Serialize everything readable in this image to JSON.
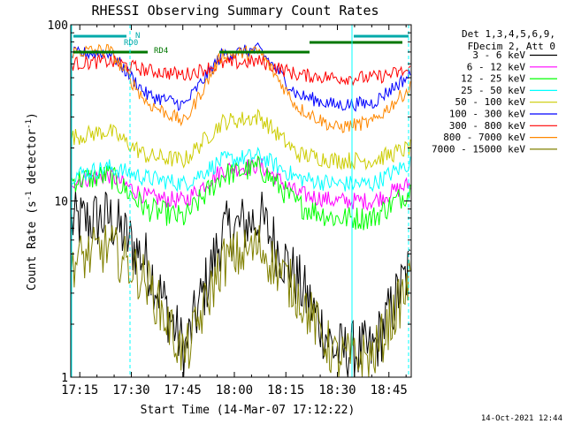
{
  "chart_data": {
    "type": "line",
    "title": "RHESSI Observing Summary Count Rates",
    "xlabel": "Start Time (14-Mar-07 17:12:22)",
    "ylabel": "Count Rate (s⁻¹ detector⁻¹)",
    "ylabel_main": "Count Rate (s",
    "ylabel_mid": " detector",
    "ylabel_end": ")",
    "ylabel_sup": "-1",
    "y_scale": "log",
    "xlim": [
      "17:12:22",
      "18:51:30"
    ],
    "ylim": [
      1,
      100
    ],
    "x_ticks": [
      "17:15",
      "17:30",
      "17:45",
      "18:00",
      "18:15",
      "18:30",
      "18:45"
    ],
    "y_ticks": [
      "1",
      "10",
      "100"
    ],
    "legend_header": [
      "Det 1,3,4,5,6,9,",
      "FDecim 2, Att 0"
    ],
    "legend_position": "right",
    "timestamp": "14-Oct-2021 12:44",
    "annotations": [
      {
        "label": "N",
        "color": "#00aaaa"
      },
      {
        "label": "RD0",
        "color": "#00aaaa"
      },
      {
        "label": "RD4",
        "color": "#007700"
      }
    ],
    "series": [
      {
        "name": "3 - 6 keV",
        "color": "#000000",
        "values": [
          7.5,
          8.0,
          4.5,
          1.4,
          6.5,
          8.0,
          3.5,
          1.4,
          1.4,
          4.2
        ],
        "noise": 0.18
      },
      {
        "name": "6 - 12 keV",
        "color": "#ff00ff",
        "values": [
          13.0,
          14.0,
          10.5,
          10.0,
          15.0,
          16.0,
          11.0,
          10.0,
          10.0,
          12.5
        ],
        "noise": 0.05
      },
      {
        "name": "12 - 25 keV",
        "color": "#00ff00",
        "values": [
          13.0,
          14.0,
          9.0,
          8.0,
          14.0,
          15.5,
          9.5,
          8.0,
          8.0,
          11.5
        ],
        "noise": 0.07
      },
      {
        "name": "25 - 50 keV",
        "color": "#00ffff",
        "values": [
          14.0,
          15.5,
          13.5,
          12.5,
          17.0,
          18.0,
          13.5,
          12.5,
          12.5,
          16.5
        ],
        "noise": 0.05
      },
      {
        "name": "50 - 100 keV",
        "color": "#cccc00",
        "values": [
          23.0,
          25.0,
          18.0,
          17.0,
          28.0,
          30.0,
          18.5,
          17.0,
          17.0,
          20.0
        ],
        "noise": 0.05
      },
      {
        "name": "100 - 300 keV",
        "color": "#0000ff",
        "values": [
          68.0,
          70.0,
          40.0,
          35.0,
          68.0,
          72.0,
          40.0,
          35.0,
          36.0,
          52.0
        ],
        "noise": 0.04
      },
      {
        "name": "300 - 800 keV",
        "color": "#ff0000",
        "values": [
          60.0,
          62.0,
          55.0,
          52.0,
          60.0,
          62.0,
          52.0,
          50.0,
          50.0,
          55.0
        ],
        "noise": 0.04
      },
      {
        "name": "800 - 7000 keV",
        "color": "#ff8800",
        "values": [
          70.0,
          72.0,
          36.0,
          28.0,
          68.0,
          70.0,
          34.0,
          26.0,
          28.0,
          44.0
        ],
        "noise": 0.04
      },
      {
        "name": "7000 - 15000 keV",
        "color": "#808000",
        "values": [
          4.5,
          5.5,
          3.5,
          1.3,
          4.5,
          5.5,
          3.0,
          1.3,
          1.3,
          3.5
        ],
        "noise": 0.15
      }
    ]
  }
}
